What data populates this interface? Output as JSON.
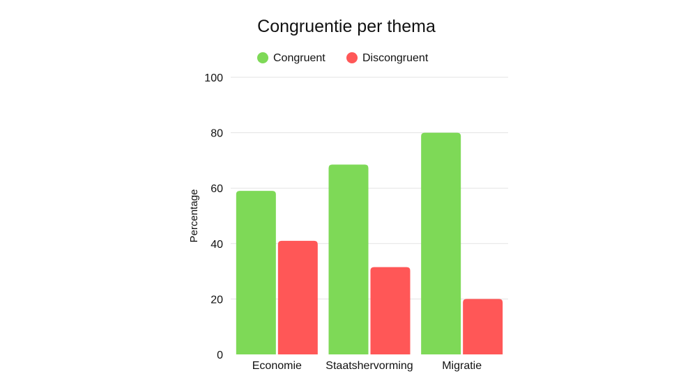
{
  "chart_data": {
    "type": "bar",
    "title": "Congruentie per thema",
    "xlabel": "",
    "ylabel": "Percentage",
    "categories": [
      "Economie",
      "Staatshervorming",
      "Migratie"
    ],
    "series": [
      {
        "name": "Congruent",
        "color": "#7ed957",
        "values": [
          59,
          68.5,
          80
        ]
      },
      {
        "name": "Discongruent",
        "color": "#ff5757",
        "values": [
          41,
          31.5,
          20
        ]
      }
    ],
    "ylim": [
      0,
      100
    ],
    "yticks": [
      "0",
      "20",
      "40",
      "60",
      "80",
      "100"
    ],
    "grid": true,
    "legend_position": "top-center"
  }
}
